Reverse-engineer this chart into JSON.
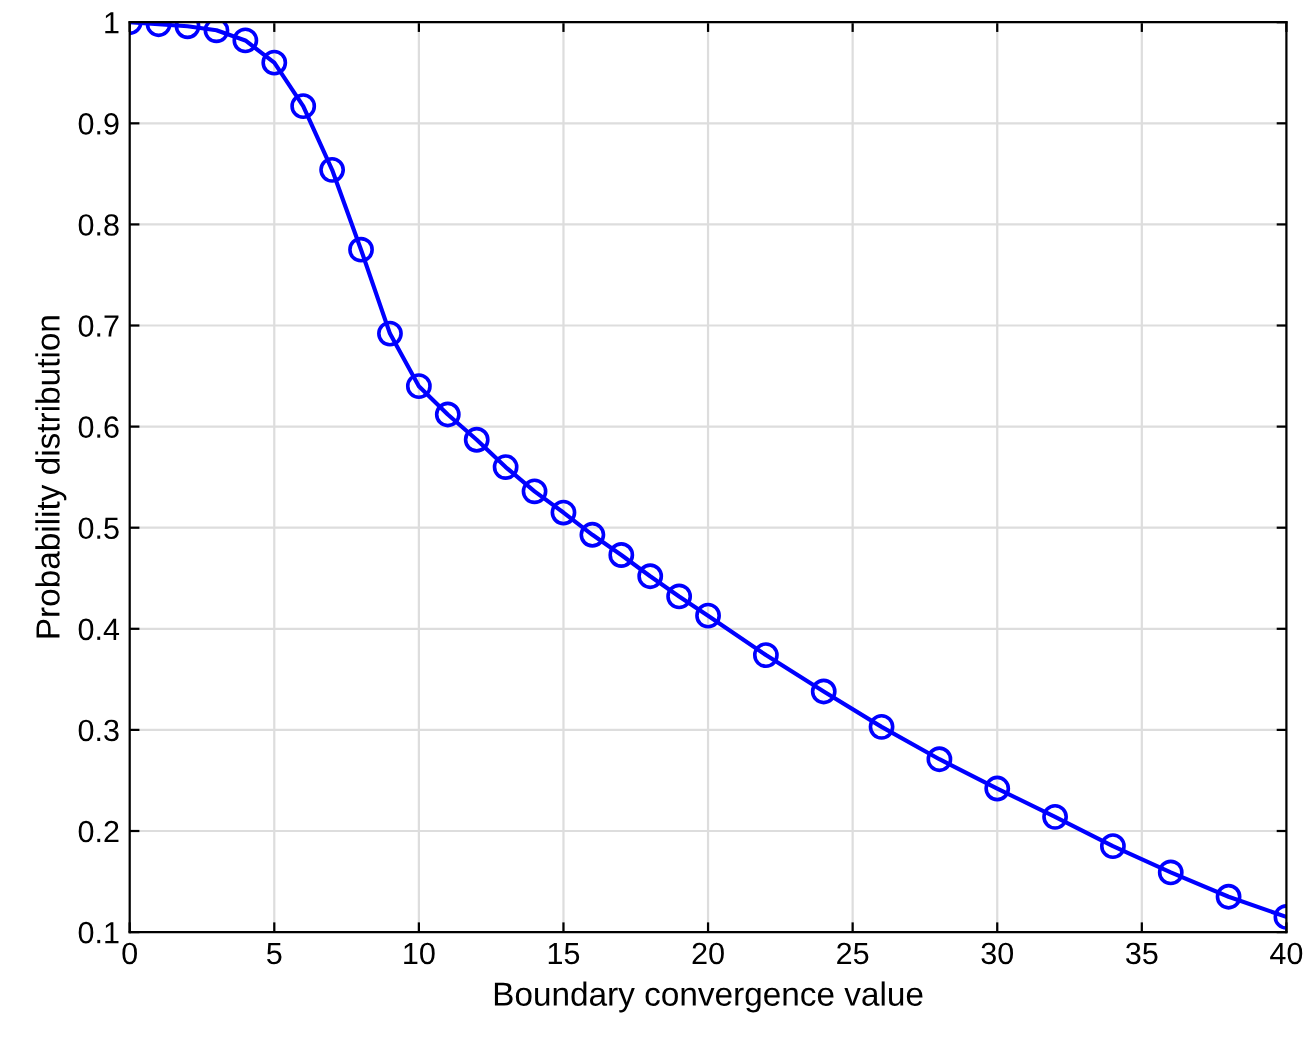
{
  "chart_data": {
    "type": "line",
    "xlabel": "Boundary convergence value",
    "ylabel": "Probability distribution",
    "x": [
      0,
      1,
      2,
      3,
      4,
      5,
      6,
      7,
      8,
      9,
      10,
      11,
      12,
      13,
      14,
      15,
      16,
      17,
      18,
      19,
      20,
      22,
      24,
      26,
      28,
      30,
      32,
      34,
      36,
      38,
      40
    ],
    "series": [
      {
        "color": "#0000ff",
        "values": [
          1.0,
          0.998,
          0.996,
          0.992,
          0.982,
          0.96,
          0.917,
          0.854,
          0.775,
          0.692,
          0.64,
          0.612,
          0.587,
          0.56,
          0.536,
          0.515,
          0.493,
          0.473,
          0.452,
          0.432,
          0.413,
          0.374,
          0.338,
          0.303,
          0.271,
          0.242,
          0.214,
          0.185,
          0.159,
          0.135,
          0.115
        ]
      }
    ],
    "xlim": [
      0,
      40
    ],
    "xticks": [
      0,
      5,
      10,
      15,
      20,
      25,
      30,
      35,
      40
    ],
    "ylim": [
      0.1,
      1
    ],
    "yticks": [
      0.1,
      0.2,
      0.3,
      0.4,
      0.5,
      0.6,
      0.7,
      0.8,
      0.9,
      1
    ],
    "grid": true,
    "marker": "circle",
    "line_style": "solid"
  }
}
